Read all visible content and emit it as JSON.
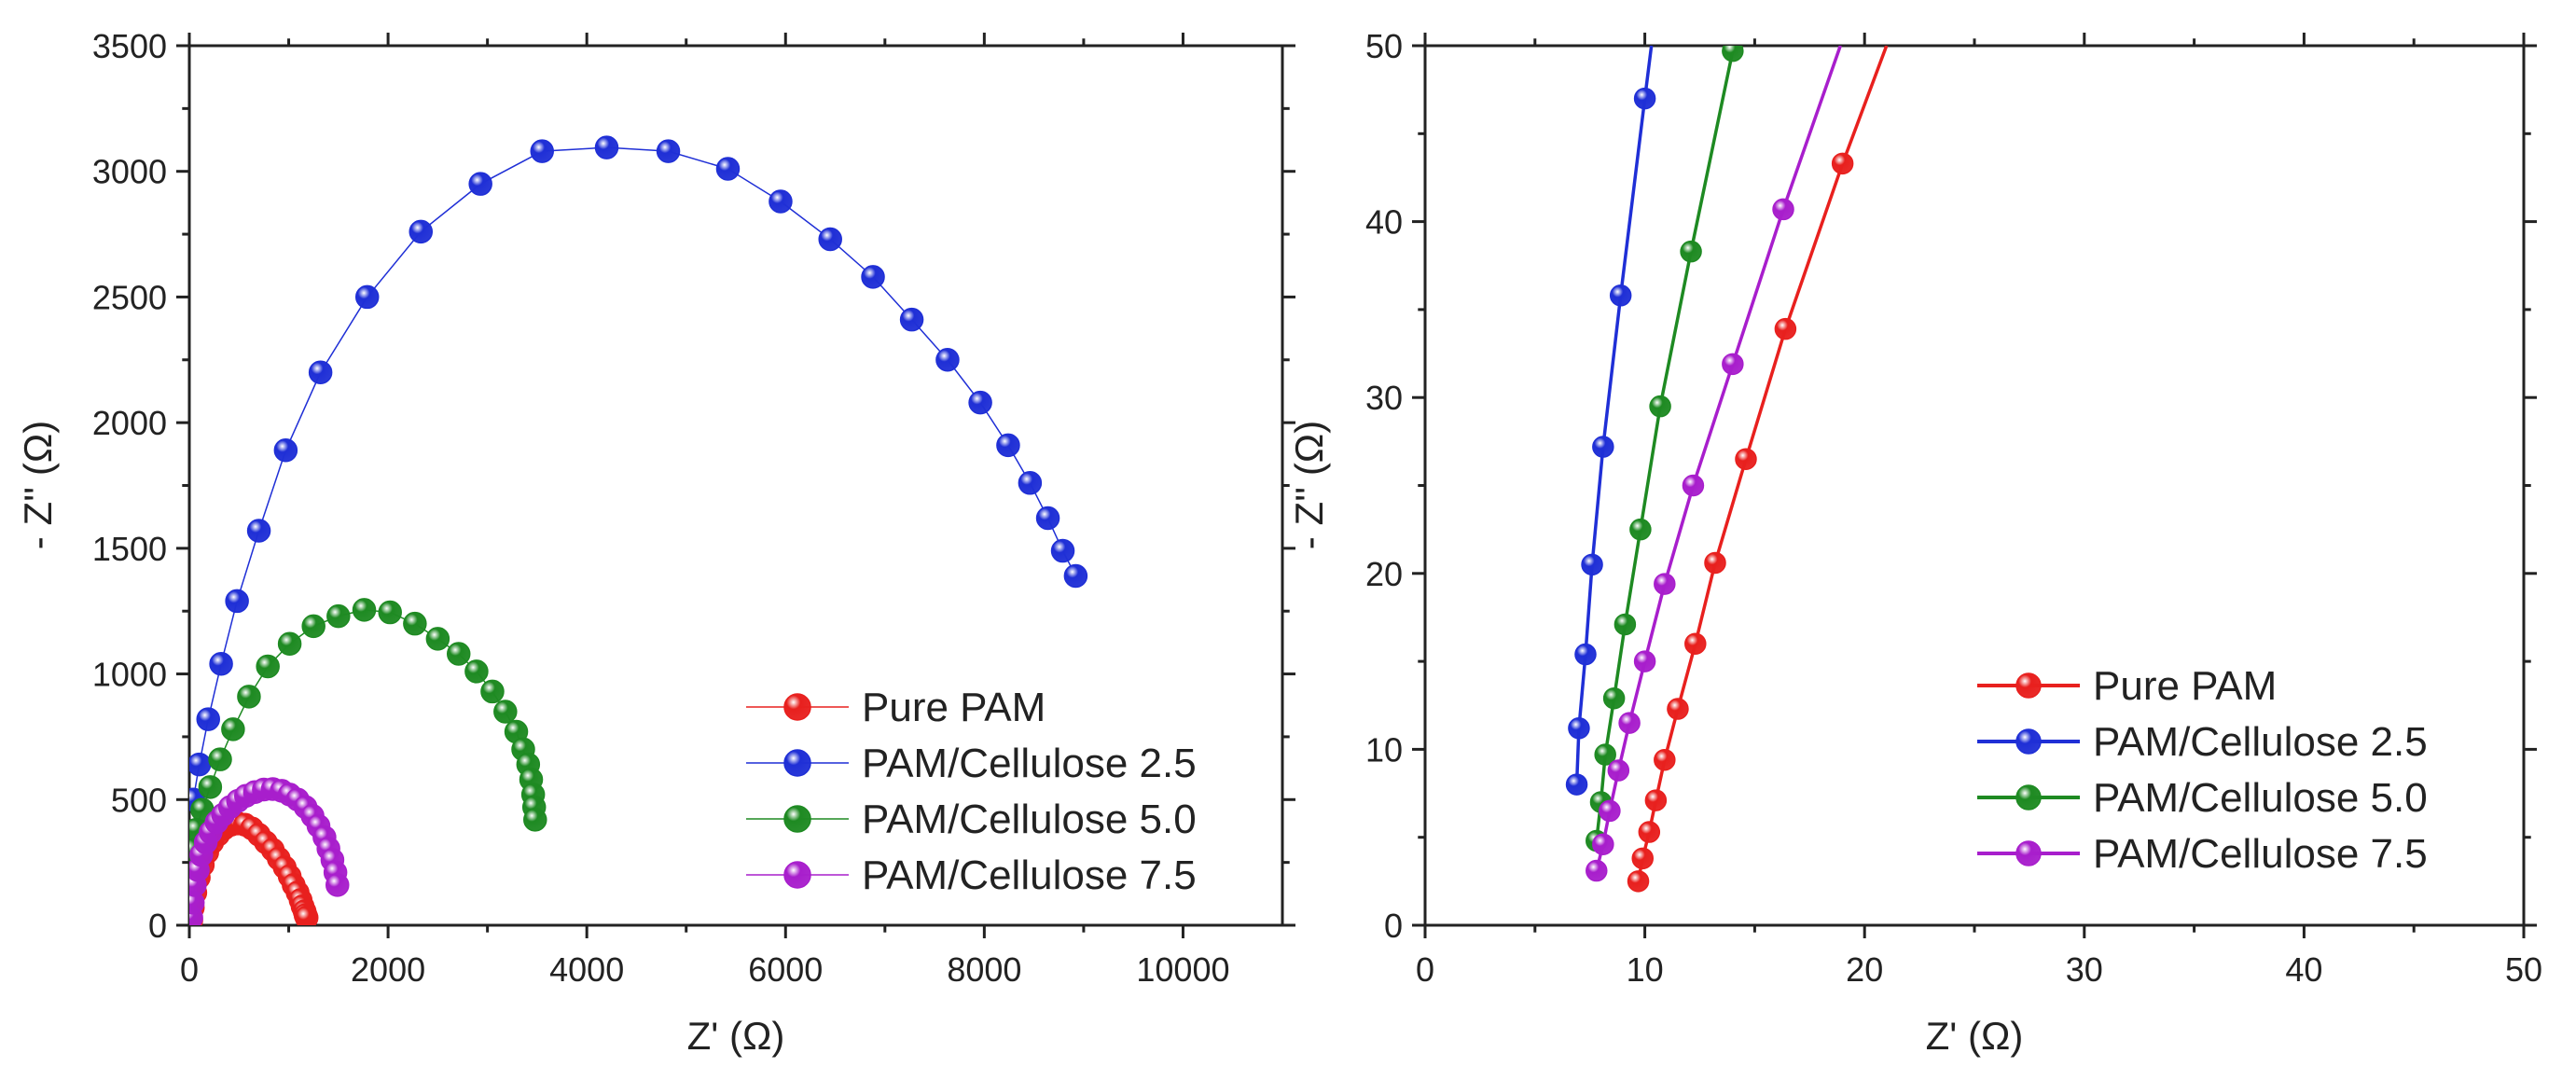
{
  "chart_data": [
    {
      "type": "scatter",
      "title": "",
      "xlabel": "Z' (Ω)",
      "ylabel": "- Z'' (Ω)",
      "xlim": [
        0,
        11000
      ],
      "ylim": [
        0,
        3500
      ],
      "xticks": [
        0,
        2000,
        4000,
        6000,
        8000,
        10000
      ],
      "yticks": [
        0,
        500,
        1000,
        1500,
        2000,
        2500,
        3000,
        3500
      ],
      "legend_position": "bottom-right",
      "legend_style": "thin-line",
      "series": [
        {
          "name": "Pure PAM",
          "color": "#e8201e",
          "x": [
            20,
            35,
            60,
            95,
            135,
            180,
            230,
            290,
            350,
            420,
            490,
            560,
            630,
            700,
            770,
            840,
            900,
            960,
            1010,
            1050,
            1090,
            1120,
            1140,
            1160,
            1170,
            1180
          ],
          "y": [
            20,
            70,
            130,
            190,
            240,
            290,
            330,
            360,
            385,
            400,
            405,
            400,
            385,
            360,
            330,
            300,
            265,
            230,
            195,
            160,
            130,
            100,
            75,
            55,
            40,
            30
          ]
        },
        {
          "name": "PAM/Cellulose 2.5",
          "color": "#1f2fd6",
          "x": [
            40,
            100,
            190,
            320,
            480,
            700,
            970,
            1320,
            1790,
            2330,
            2930,
            3550,
            4200,
            4820,
            5420,
            5950,
            6450,
            6880,
            7270,
            7630,
            7960,
            8240,
            8460,
            8640,
            8790,
            8920
          ],
          "y": [
            500,
            640,
            820,
            1040,
            1290,
            1570,
            1890,
            2200,
            2500,
            2760,
            2950,
            3080,
            3095,
            3080,
            3010,
            2880,
            2730,
            2580,
            2410,
            2250,
            2080,
            1910,
            1760,
            1620,
            1490,
            1390
          ]
        },
        {
          "name": "PAM/Cellulose 5.0",
          "color": "#1e8a22",
          "x": [
            30,
            70,
            130,
            210,
            310,
            440,
            600,
            790,
            1010,
            1250,
            1500,
            1760,
            2020,
            2270,
            2500,
            2710,
            2890,
            3050,
            3180,
            3290,
            3360,
            3410,
            3440,
            3460,
            3470,
            3480
          ],
          "y": [
            300,
            380,
            460,
            550,
            660,
            780,
            910,
            1030,
            1120,
            1190,
            1230,
            1255,
            1245,
            1200,
            1140,
            1080,
            1010,
            930,
            850,
            770,
            700,
            640,
            580,
            520,
            470,
            420
          ]
        },
        {
          "name": "PAM/Cellulose 7.5",
          "color": "#a81ecc",
          "x": [
            20,
            35,
            55,
            85,
            120,
            165,
            215,
            275,
            340,
            410,
            490,
            570,
            660,
            750,
            840,
            930,
            1010,
            1090,
            1170,
            1240,
            1300,
            1360,
            1400,
            1440,
            1470,
            1490
          ],
          "y": [
            30,
            90,
            160,
            220,
            280,
            330,
            370,
            410,
            440,
            470,
            495,
            515,
            530,
            540,
            542,
            535,
            520,
            500,
            470,
            435,
            395,
            350,
            305,
            260,
            210,
            160
          ]
        }
      ]
    },
    {
      "type": "line",
      "title": "",
      "xlabel": "Z' (Ω)",
      "ylabel": "- Z'' (Ω)",
      "xlim": [
        0,
        50
      ],
      "ylim": [
        0,
        50
      ],
      "xticks": [
        0,
        10,
        20,
        30,
        40,
        50
      ],
      "yticks": [
        0,
        10,
        20,
        30,
        40,
        50
      ],
      "legend_position": "bottom-right",
      "legend_style": "thick-line",
      "series": [
        {
          "name": "Pure PAM",
          "color": "#e8201e",
          "x": [
            9.7,
            9.9,
            10.2,
            10.5,
            10.9,
            11.5,
            12.3,
            13.2,
            14.6,
            16.4,
            19.0,
            21.0
          ],
          "y": [
            2.5,
            3.8,
            5.3,
            7.1,
            9.4,
            12.3,
            16.0,
            20.6,
            26.5,
            33.9,
            43.3,
            50.0
          ],
          "markers": 11
        },
        {
          "name": "PAM/Cellulose 2.5",
          "color": "#1f2fd6",
          "x": [
            6.9,
            7.0,
            7.3,
            7.6,
            8.1,
            8.9,
            10.0,
            10.3
          ],
          "y": [
            8.0,
            11.2,
            15.4,
            20.5,
            27.2,
            35.8,
            47.0,
            50.0
          ],
          "markers": 7
        },
        {
          "name": "PAM/Cellulose 5.0",
          "color": "#1e8a22",
          "x": [
            7.8,
            8.0,
            8.2,
            8.6,
            9.1,
            9.8,
            10.7,
            12.1,
            14.0
          ],
          "y": [
            4.8,
            7.0,
            9.7,
            12.9,
            17.1,
            22.5,
            29.5,
            38.3,
            49.7
          ],
          "markers": 9
        },
        {
          "name": "PAM/Cellulose 7.5",
          "color": "#a81ecc",
          "x": [
            7.8,
            8.1,
            8.4,
            8.8,
            9.3,
            10.0,
            10.9,
            12.2,
            14.0,
            16.3,
            18.9
          ],
          "y": [
            3.1,
            4.6,
            6.5,
            8.8,
            11.5,
            15.0,
            19.4,
            25.0,
            31.9,
            40.7,
            50.0
          ],
          "markers": 10
        }
      ]
    }
  ]
}
